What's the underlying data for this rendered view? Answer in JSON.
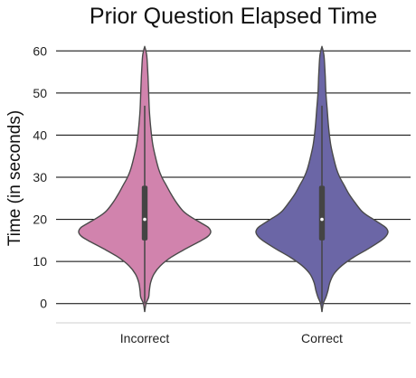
{
  "chart_data": {
    "type": "violin",
    "title": "Prior Question Elapsed Time",
    "xlabel": "",
    "ylabel": "Time (in seconds)",
    "ylim": [
      -3.5,
      63.5
    ],
    "yticks": [
      0,
      10,
      20,
      30,
      40,
      50,
      60
    ],
    "grid": true,
    "categories": [
      "Incorrect",
      "Correct"
    ],
    "colors": [
      "#d183ad",
      "#6b66a6"
    ],
    "series": [
      {
        "category": "Incorrect",
        "min": -2,
        "max": 61,
        "q1": 15,
        "median": 20,
        "q3": 28,
        "whisker_low": 0,
        "whisker_high": 47,
        "profile": [
          [
            -2,
            0.0
          ],
          [
            0,
            0.02
          ],
          [
            1.5,
            0.06
          ],
          [
            3,
            0.07
          ],
          [
            5,
            0.09
          ],
          [
            7,
            0.14
          ],
          [
            9,
            0.24
          ],
          [
            11,
            0.4
          ],
          [
            13,
            0.62
          ],
          [
            15,
            0.86
          ],
          [
            16,
            0.96
          ],
          [
            17,
            1.0
          ],
          [
            18,
            0.97
          ],
          [
            19,
            0.87
          ],
          [
            20,
            0.76
          ],
          [
            21,
            0.66
          ],
          [
            22,
            0.58
          ],
          [
            24,
            0.48
          ],
          [
            26,
            0.4
          ],
          [
            28,
            0.33
          ],
          [
            30,
            0.26
          ],
          [
            32,
            0.21
          ],
          [
            35,
            0.16
          ],
          [
            38,
            0.12
          ],
          [
            42,
            0.09
          ],
          [
            46,
            0.07
          ],
          [
            50,
            0.06
          ],
          [
            54,
            0.05
          ],
          [
            57,
            0.04
          ],
          [
            59,
            0.03
          ],
          [
            60.5,
            0.01
          ],
          [
            61,
            0.0
          ]
        ]
      },
      {
        "category": "Correct",
        "min": -2,
        "max": 61,
        "q1": 15,
        "median": 20,
        "q3": 28,
        "whisker_low": 0,
        "whisker_high": 47,
        "profile": [
          [
            -2,
            0.0
          ],
          [
            0,
            0.02
          ],
          [
            1.5,
            0.06
          ],
          [
            3,
            0.09
          ],
          [
            5,
            0.12
          ],
          [
            7,
            0.18
          ],
          [
            9,
            0.3
          ],
          [
            11,
            0.48
          ],
          [
            13,
            0.7
          ],
          [
            15,
            0.9
          ],
          [
            16,
            0.97
          ],
          [
            17,
            1.0
          ],
          [
            18,
            0.97
          ],
          [
            19,
            0.88
          ],
          [
            20,
            0.78
          ],
          [
            21,
            0.68
          ],
          [
            22,
            0.6
          ],
          [
            24,
            0.5
          ],
          [
            26,
            0.41
          ],
          [
            28,
            0.34
          ],
          [
            30,
            0.27
          ],
          [
            32,
            0.22
          ],
          [
            35,
            0.17
          ],
          [
            38,
            0.13
          ],
          [
            42,
            0.1
          ],
          [
            46,
            0.08
          ],
          [
            50,
            0.06
          ],
          [
            54,
            0.05
          ],
          [
            57,
            0.04
          ],
          [
            59,
            0.03
          ],
          [
            60.5,
            0.01
          ],
          [
            61,
            0.0
          ]
        ]
      }
    ]
  }
}
